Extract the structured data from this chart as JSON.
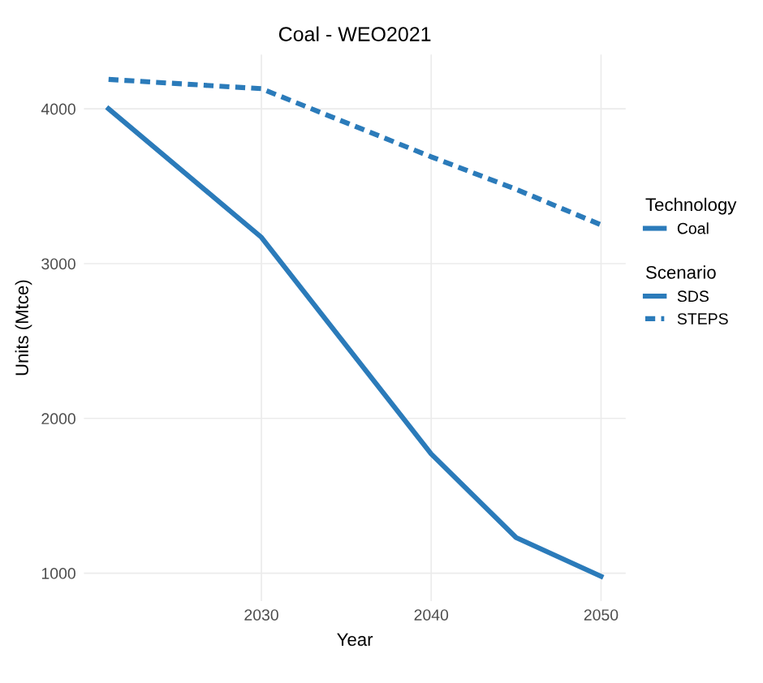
{
  "chart_data": {
    "type": "line",
    "title": "Coal - WEO2021",
    "xlabel": "Year",
    "ylabel": "Units (Mtce)",
    "x": [
      2021,
      2030,
      2040,
      2045,
      2050
    ],
    "series": [
      {
        "name": "SDS",
        "color": "#2b7bba",
        "line_style": "solid",
        "values": [
          4000,
          3170,
          1770,
          1230,
          980
        ]
      },
      {
        "name": "STEPS",
        "color": "#2b7bba",
        "line_style": "dashed",
        "values": [
          4190,
          4130,
          3690,
          3480,
          3250
        ]
      }
    ],
    "xlim": [
      2019.55,
      2051.45
    ],
    "xticks": [
      2030,
      2040,
      2050
    ],
    "ylim": [
      820,
      4350
    ],
    "yticks": [
      1000,
      2000,
      3000,
      4000
    ],
    "grid": true,
    "legend": "right",
    "legend_title": "Scenario",
    "annotations": [
      "Technology",
      "Coal"
    ]
  }
}
